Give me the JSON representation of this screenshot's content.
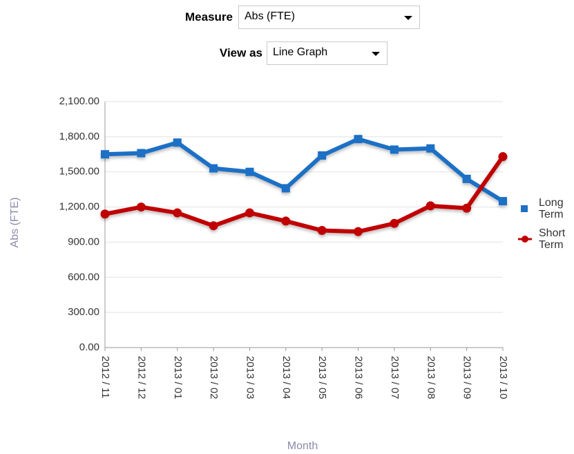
{
  "controls": {
    "measure": {
      "label": "Measure",
      "value": "Abs (FTE)"
    },
    "view_as": {
      "label": "View as",
      "value": "Line Graph"
    }
  },
  "chart_data": {
    "type": "line",
    "y_label": "Abs (FTE)",
    "x_label": "Month",
    "categories": [
      "2012 / 11",
      "2012 / 12",
      "2013 / 01",
      "2013 / 02",
      "2013 / 03",
      "2013 / 04",
      "2013 / 05",
      "2013 / 06",
      "2013 / 07",
      "2013 / 08",
      "2013 / 09",
      "2013 / 10"
    ],
    "series": [
      {
        "name": "Long Term",
        "color": "#1f6fc5",
        "marker": "square",
        "values": [
          1650,
          1660,
          1750,
          1530,
          1500,
          1360,
          1640,
          1780,
          1690,
          1700,
          1440,
          1250
        ]
      },
      {
        "name": "Short Term",
        "color": "#c00000",
        "marker": "circle",
        "values": [
          1140,
          1200,
          1150,
          1040,
          1150,
          1080,
          1000,
          990,
          1060,
          1210,
          1190,
          1630
        ]
      }
    ],
    "ylim": [
      0,
      2100
    ],
    "yticks": [
      {
        "value": 0,
        "label": "0.00"
      },
      {
        "value": 300,
        "label": "300.00"
      },
      {
        "value": 600,
        "label": "600.00"
      },
      {
        "value": 900,
        "label": "900.00"
      },
      {
        "value": 1200,
        "label": "1,200.00"
      },
      {
        "value": 1500,
        "label": "1,500.00"
      },
      {
        "value": 1800,
        "label": "1,800.00"
      },
      {
        "value": 2100,
        "label": "2,100.00"
      }
    ],
    "grid": true,
    "legend": "right"
  }
}
